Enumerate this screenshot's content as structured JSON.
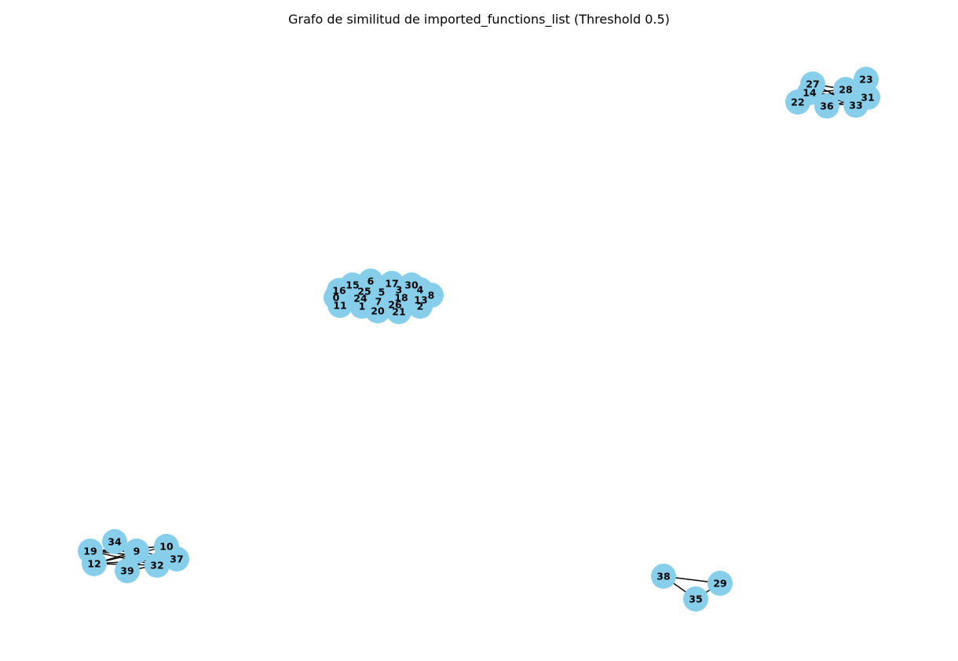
{
  "figure": {
    "title": "Grafo de similitud de imported_functions_list (Threshold 0.5)",
    "background_color": "#ffffff",
    "node_color": "#87ceeb",
    "edge_color": "#000000",
    "label_color": "#000000"
  },
  "graph": {
    "threshold": 0.5,
    "clusters": [
      {
        "name": "center",
        "nodes": [
          "16",
          "15",
          "6",
          "17",
          "30",
          "4",
          "8",
          "0",
          "25",
          "5",
          "3",
          "18",
          "13",
          "11",
          "24",
          "1",
          "7",
          "20",
          "26",
          "21",
          "2"
        ]
      },
      {
        "name": "top-right",
        "nodes": [
          "27",
          "14",
          "28",
          "23",
          "22",
          "36",
          "33",
          "31"
        ]
      },
      {
        "name": "bottom-left",
        "nodes": [
          "34",
          "19",
          "9",
          "10",
          "12",
          "39",
          "32",
          "37"
        ]
      },
      {
        "name": "bottom-right",
        "nodes": [
          "38",
          "29",
          "35"
        ]
      }
    ],
    "edges": [
      [
        "27",
        "28"
      ],
      [
        "27",
        "33"
      ],
      [
        "27",
        "36"
      ],
      [
        "14",
        "28"
      ],
      [
        "14",
        "33"
      ],
      [
        "14",
        "31"
      ],
      [
        "22",
        "28"
      ],
      [
        "22",
        "33"
      ],
      [
        "36",
        "28"
      ],
      [
        "28",
        "33"
      ],
      [
        "23",
        "33"
      ],
      [
        "31",
        "36"
      ],
      [
        "19",
        "9"
      ],
      [
        "19",
        "32"
      ],
      [
        "19",
        "10"
      ],
      [
        "19",
        "37"
      ],
      [
        "12",
        "9"
      ],
      [
        "12",
        "32"
      ],
      [
        "12",
        "10"
      ],
      [
        "12",
        "37"
      ],
      [
        "34",
        "32"
      ],
      [
        "39",
        "10"
      ],
      [
        "9",
        "32"
      ],
      [
        "9",
        "37"
      ],
      [
        "39",
        "32"
      ],
      [
        "38",
        "29"
      ],
      [
        "38",
        "35"
      ],
      [
        "35",
        "29"
      ]
    ]
  }
}
